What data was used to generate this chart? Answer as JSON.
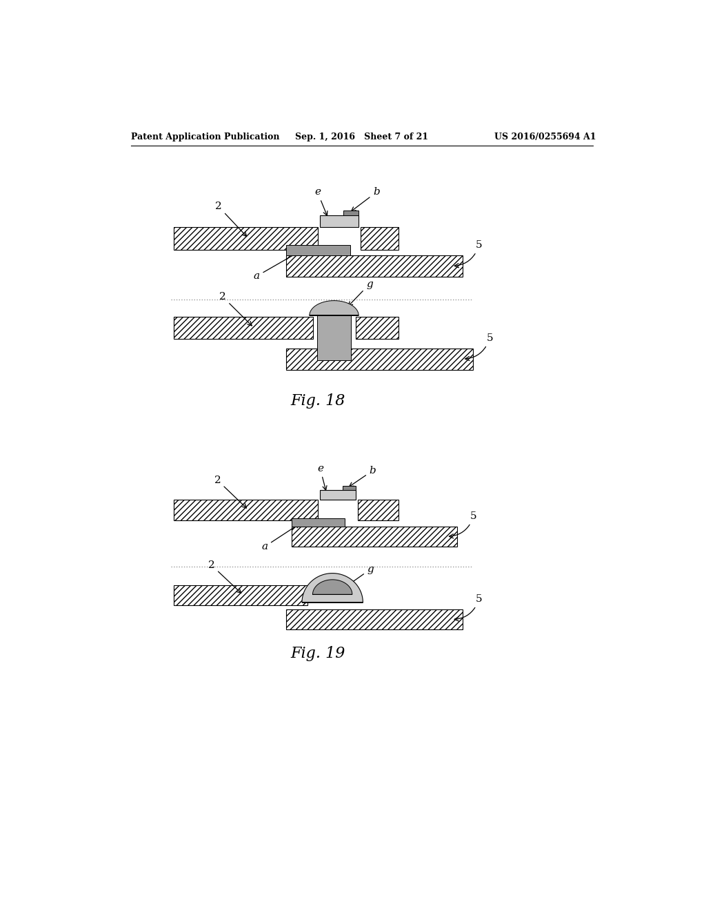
{
  "bg_color": "#ffffff",
  "header_left": "Patent Application Publication",
  "header_mid": "Sep. 1, 2016   Sheet 7 of 21",
  "header_right": "US 2016/0255694 A1",
  "fig18_label": "Fig. 18",
  "fig19_label": "Fig. 19"
}
